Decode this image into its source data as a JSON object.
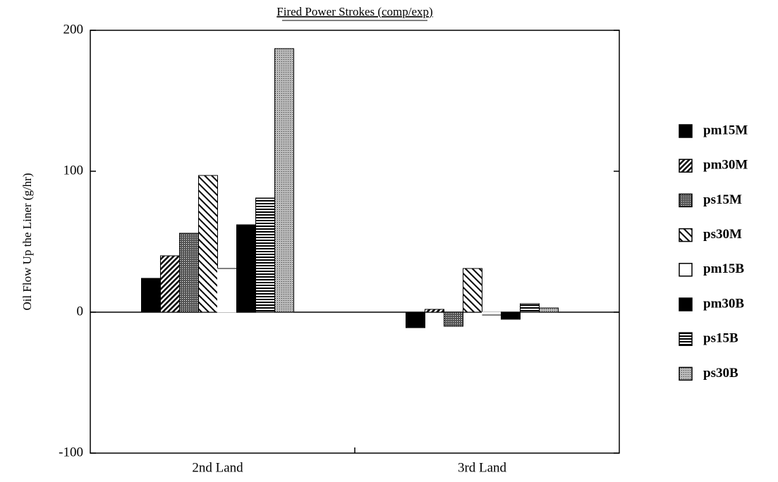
{
  "chart_data": {
    "type": "bar",
    "title": "Fired Power Strokes (comp/exp)",
    "y_label": "Oil Flow Up the Liner (g/hr)",
    "categories": [
      "2nd Land",
      "3rd Land"
    ],
    "ylim": [
      -100,
      200
    ],
    "yticks": [
      -100,
      0,
      100,
      200
    ],
    "series": [
      {
        "name": "pm15M",
        "color": "#000000",
        "pattern": "solid",
        "values": [
          24,
          -11
        ]
      },
      {
        "name": "pm30M",
        "color": "#000000",
        "pattern": "diagonal",
        "values": [
          40,
          2
        ]
      },
      {
        "name": "ps15M",
        "color": "#000000",
        "pattern": "dots",
        "values": [
          56,
          -10
        ]
      },
      {
        "name": "ps30M",
        "color": "#000000",
        "pattern": "hatch",
        "values": [
          97,
          31
        ]
      },
      {
        "name": "pm15B",
        "color": "#000000",
        "pattern": "none",
        "values": [
          31,
          -2
        ]
      },
      {
        "name": "pm30B",
        "color": "#000000",
        "pattern": "solid",
        "values": [
          62,
          -5
        ]
      },
      {
        "name": "ps15B",
        "color": "#000000",
        "pattern": "horizontal",
        "values": [
          81,
          6
        ]
      },
      {
        "name": "ps30B",
        "color": "#000000",
        "pattern": "dense-dots",
        "values": [
          187,
          3
        ]
      }
    ]
  }
}
